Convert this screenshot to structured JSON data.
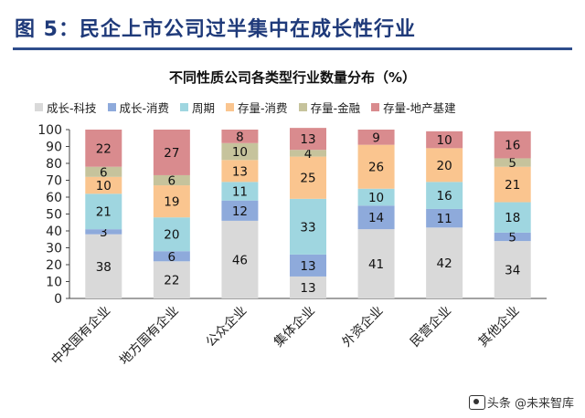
{
  "figure_title": "图 5：民企上市公司过半集中在成长性行业",
  "watermark": "头条 @未来智库",
  "chart_data": {
    "type": "bar",
    "stacked": true,
    "title": "不同性质公司各类型行业数量分布（%）",
    "xlabel": "",
    "ylabel": "",
    "ylim": [
      0,
      100
    ],
    "yticks": [
      0,
      10,
      20,
      30,
      40,
      50,
      60,
      70,
      80,
      90,
      100
    ],
    "grid": false,
    "legend_position": "top",
    "categories": [
      "中央国有企业",
      "地方国有企业",
      "公众企业",
      "集体企业",
      "外资企业",
      "民营企业",
      "其他企业"
    ],
    "series": [
      {
        "name": "成长-科技",
        "color": "#d9d9d9",
        "values": [
          38,
          22,
          46,
          13,
          41,
          42,
          34
        ],
        "labels": [
          "38",
          "22",
          "46",
          "13",
          "41",
          "42",
          "34"
        ]
      },
      {
        "name": "成长-消费",
        "color": "#8eaadb",
        "values": [
          3,
          6,
          12,
          13,
          14,
          11,
          5
        ],
        "labels": [
          "3",
          "6",
          "12",
          "13",
          "14",
          "11",
          "5"
        ]
      },
      {
        "name": "周期",
        "color": "#9fd6e0",
        "values": [
          21,
          20,
          11,
          33,
          10,
          16,
          18
        ],
        "labels": [
          "21",
          "20",
          "11",
          "33",
          "10",
          "16",
          "18"
        ]
      },
      {
        "name": "存量-消费",
        "color": "#fac58f",
        "values": [
          10,
          19,
          13,
          25,
          26,
          20,
          21
        ],
        "labels": [
          "10",
          "19",
          "13",
          "25",
          "26",
          "20",
          "21"
        ]
      },
      {
        "name": "存量-金融",
        "color": "#c6c39c",
        "values": [
          6,
          6,
          10,
          4,
          0,
          0,
          5
        ],
        "labels": [
          "6",
          "6",
          "10",
          "4",
          "",
          "",
          "5"
        ]
      },
      {
        "name": "存量-地产基建",
        "color": "#d98b8e",
        "values": [
          22,
          27,
          8,
          13,
          9,
          10,
          16
        ],
        "labels": [
          "22",
          "27",
          "8",
          "13",
          "9",
          "10",
          "16"
        ]
      }
    ]
  }
}
